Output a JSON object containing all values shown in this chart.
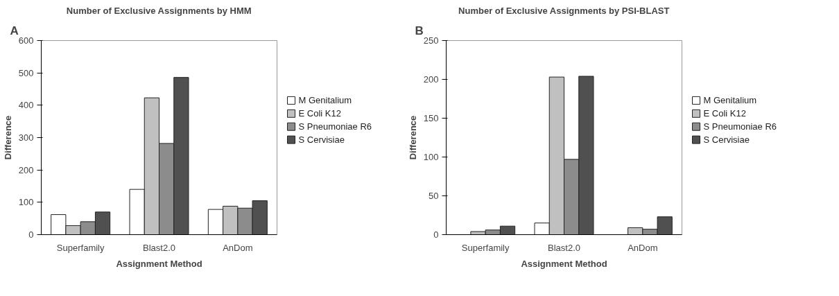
{
  "chart_data": [
    {
      "type": "bar",
      "title": "Number of Exclusive Assignments by HMM",
      "xlabel": "Assignment Method",
      "ylabel": "Difference",
      "annotations": [
        "A"
      ],
      "categories": [
        "Superfamily",
        "Blast2.0",
        "AnDom"
      ],
      "series": [
        {
          "name": "M Genitalium",
          "color": "#ffffff",
          "values": [
            62,
            140,
            78
          ]
        },
        {
          "name": "E Coli K12",
          "color": "#c0c0c0",
          "values": [
            28,
            423,
            88
          ]
        },
        {
          "name": "S Pneumoniae R6",
          "color": "#8c8c8c",
          "values": [
            40,
            282,
            82
          ]
        },
        {
          "name": "S Cervisiae",
          "color": "#505050",
          "values": [
            70,
            486,
            105
          ]
        }
      ],
      "ylim": [
        0,
        600
      ],
      "yticks": [
        0,
        100,
        200,
        300,
        400,
        500,
        600
      ],
      "legend": "right",
      "grid": false
    },
    {
      "type": "bar",
      "title": "Number of Exclusive Assignments by PSI-BLAST",
      "xlabel": "Assignment Method",
      "ylabel": "Difference",
      "annotations": [
        "B"
      ],
      "categories": [
        "Superfamily",
        "Blast2.0",
        "AnDom"
      ],
      "series": [
        {
          "name": "M Genitalium",
          "color": "#ffffff",
          "values": [
            null,
            15,
            null
          ]
        },
        {
          "name": "E Coli K12",
          "color": "#c0c0c0",
          "values": [
            4,
            203,
            9
          ]
        },
        {
          "name": "S Pneumoniae R6",
          "color": "#8c8c8c",
          "values": [
            6,
            97,
            7
          ]
        },
        {
          "name": "S Cervisiae",
          "color": "#505050",
          "values": [
            11,
            204,
            23
          ]
        }
      ],
      "ylim": [
        0,
        250
      ],
      "yticks": [
        0,
        50,
        100,
        150,
        200,
        250
      ],
      "legend": "right",
      "grid": false
    }
  ]
}
